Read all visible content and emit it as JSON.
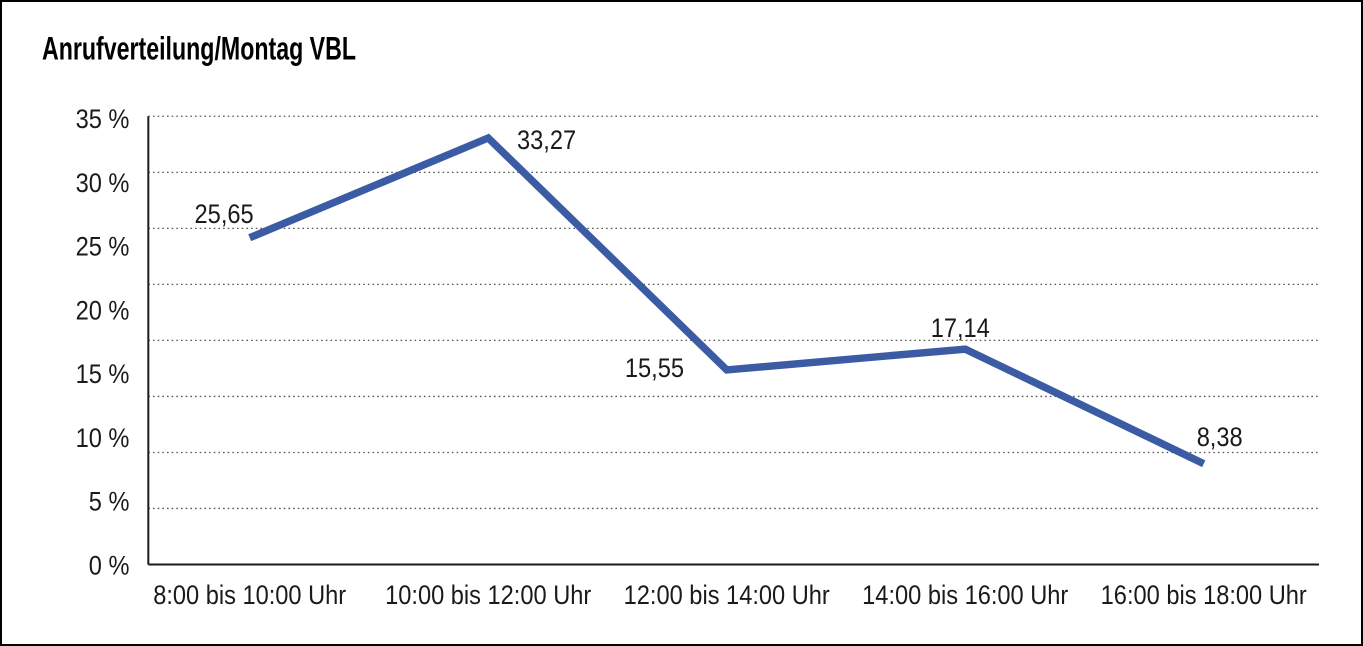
{
  "window": {
    "title": "Anrufverteilung/Montag VBL"
  },
  "chart_data": {
    "type": "line",
    "title": "Anrufverteilung/Montag VBL",
    "categories": [
      "8:00 bis 10:00 Uhr",
      "10:00 bis 12:00 Uhr",
      "12:00 bis 14:00 Uhr",
      "14:00 bis 16:00 Uhr",
      "16:00 bis 18:00 Uhr"
    ],
    "values": [
      25.65,
      33.27,
      15.55,
      17.14,
      8.38
    ],
    "value_labels": [
      "25,65",
      "33,27",
      "15,55",
      "17,14",
      "8,38"
    ],
    "y_ticks": [
      "35 %",
      "30 %",
      "25 %",
      "20 %",
      "15 %",
      "10 %",
      "5 %",
      "0 %"
    ],
    "ylim": [
      0,
      35
    ],
    "y_unit": "%",
    "xlabel": "",
    "ylabel": "",
    "grid": "horizontal-dotted",
    "legend": "none",
    "colors": {
      "line": "#3B5CA4",
      "axis": "#1a1a1a",
      "gridline": "#555555",
      "text": "#1a1a1a",
      "background": "#ffffff",
      "border": "#000000"
    }
  }
}
